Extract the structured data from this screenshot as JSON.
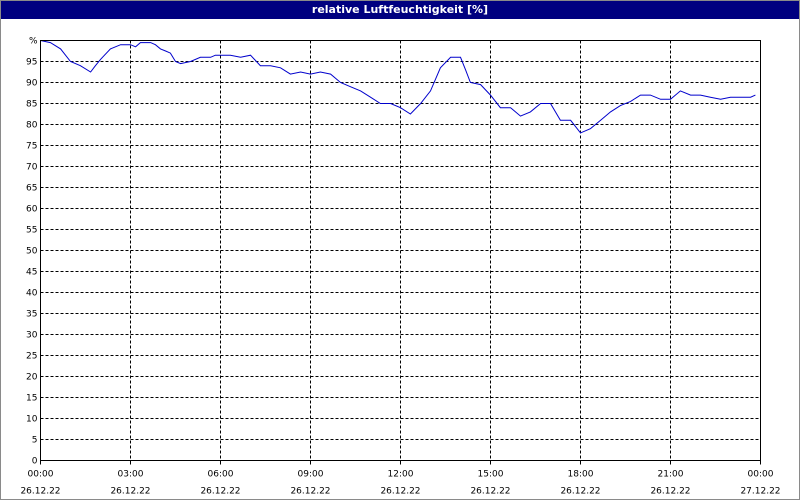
{
  "window": {
    "title": "relative Luftfeuchtigkeit [%]"
  },
  "chart_data": {
    "type": "line",
    "title": "relative Luftfeuchtigkeit [%]",
    "xlabel": "",
    "ylabel": "",
    "ylim": [
      0,
      100
    ],
    "xlim": [
      "26.12.22 00:00",
      "27.12.22 00:00"
    ],
    "grid": true,
    "legend": "none",
    "colors": {
      "line": "#0000cc",
      "grid": "#000000",
      "background": "#ffffff",
      "title_bar": "#000080"
    },
    "y_ticks": [
      {
        "value": 0,
        "label": "0"
      },
      {
        "value": 5,
        "label": "5"
      },
      {
        "value": 10,
        "label": "10"
      },
      {
        "value": 15,
        "label": "15"
      },
      {
        "value": 20,
        "label": "20"
      },
      {
        "value": 25,
        "label": "25"
      },
      {
        "value": 30,
        "label": "30"
      },
      {
        "value": 35,
        "label": "35"
      },
      {
        "value": 40,
        "label": "40"
      },
      {
        "value": 45,
        "label": "45"
      },
      {
        "value": 50,
        "label": "50"
      },
      {
        "value": 55,
        "label": "55"
      },
      {
        "value": 60,
        "label": "60"
      },
      {
        "value": 65,
        "label": "65"
      },
      {
        "value": 70,
        "label": "70"
      },
      {
        "value": 75,
        "label": "75"
      },
      {
        "value": 80,
        "label": "80"
      },
      {
        "value": 85,
        "label": "85"
      },
      {
        "value": 90,
        "label": "90"
      },
      {
        "value": 95,
        "label": "95"
      },
      {
        "value": 100,
        "label": "%"
      }
    ],
    "x_ticks": [
      {
        "hour": 0,
        "time": "00:00",
        "date": "26.12.22"
      },
      {
        "hour": 3,
        "time": "03:00",
        "date": "26.12.22"
      },
      {
        "hour": 6,
        "time": "06:00",
        "date": "26.12.22"
      },
      {
        "hour": 9,
        "time": "09:00",
        "date": "26.12.22"
      },
      {
        "hour": 12,
        "time": "12:00",
        "date": "26.12.22"
      },
      {
        "hour": 15,
        "time": "15:00",
        "date": "26.12.22"
      },
      {
        "hour": 18,
        "time": "18:00",
        "date": "26.12.22"
      },
      {
        "hour": 21,
        "time": "21:00",
        "date": "26.12.22"
      },
      {
        "hour": 24,
        "time": "00:00",
        "date": "27.12.22"
      }
    ],
    "series": [
      {
        "x": [
          0.0,
          0.33,
          0.67,
          1.0,
          1.33,
          1.67,
          1.83,
          2.0,
          2.33,
          2.67,
          3.0,
          3.17,
          3.33,
          3.5,
          3.67,
          3.83,
          4.0,
          4.17,
          4.33,
          4.5,
          4.67,
          5.0,
          5.33,
          5.5,
          5.67,
          5.83,
          6.0,
          6.33,
          6.67,
          7.0,
          7.33,
          7.67,
          8.0,
          8.33,
          8.67,
          9.0,
          9.33,
          9.67,
          10.0,
          10.33,
          10.67,
          11.0,
          11.33,
          11.67,
          12.0,
          12.33,
          12.67,
          13.0,
          13.33,
          13.67,
          14.0,
          14.17,
          14.33,
          14.67,
          15.0,
          15.33,
          15.67,
          16.0,
          16.33,
          16.67,
          17.0,
          17.33,
          17.67,
          18.0,
          18.33,
          18.67,
          19.0,
          19.33,
          19.67,
          20.0,
          20.33,
          20.67,
          21.0,
          21.33,
          21.67,
          22.0,
          22.33,
          22.67,
          23.0,
          23.33,
          23.67,
          23.83
        ],
        "values": [
          100,
          99.5,
          98,
          95,
          94,
          92.5,
          94,
          95.5,
          98,
          99,
          99,
          98.5,
          99.5,
          99.5,
          99.5,
          99,
          98,
          97.5,
          97,
          95,
          94.5,
          95,
          96,
          96,
          96,
          96.5,
          96.5,
          96.5,
          96,
          96.5,
          94,
          94,
          93.5,
          92,
          92.5,
          92,
          92.5,
          92,
          90,
          89,
          88,
          86.5,
          85,
          85,
          84,
          82.5,
          85,
          88,
          93.5,
          96,
          96,
          93,
          90,
          89.5,
          87,
          84,
          84,
          82,
          83,
          85,
          85,
          81,
          81,
          78,
          79,
          81,
          83,
          84.5,
          85.5,
          87,
          87,
          86,
          86,
          88,
          87,
          87,
          86.5,
          86,
          86.5,
          86.5,
          86.5,
          87
        ]
      }
    ]
  }
}
